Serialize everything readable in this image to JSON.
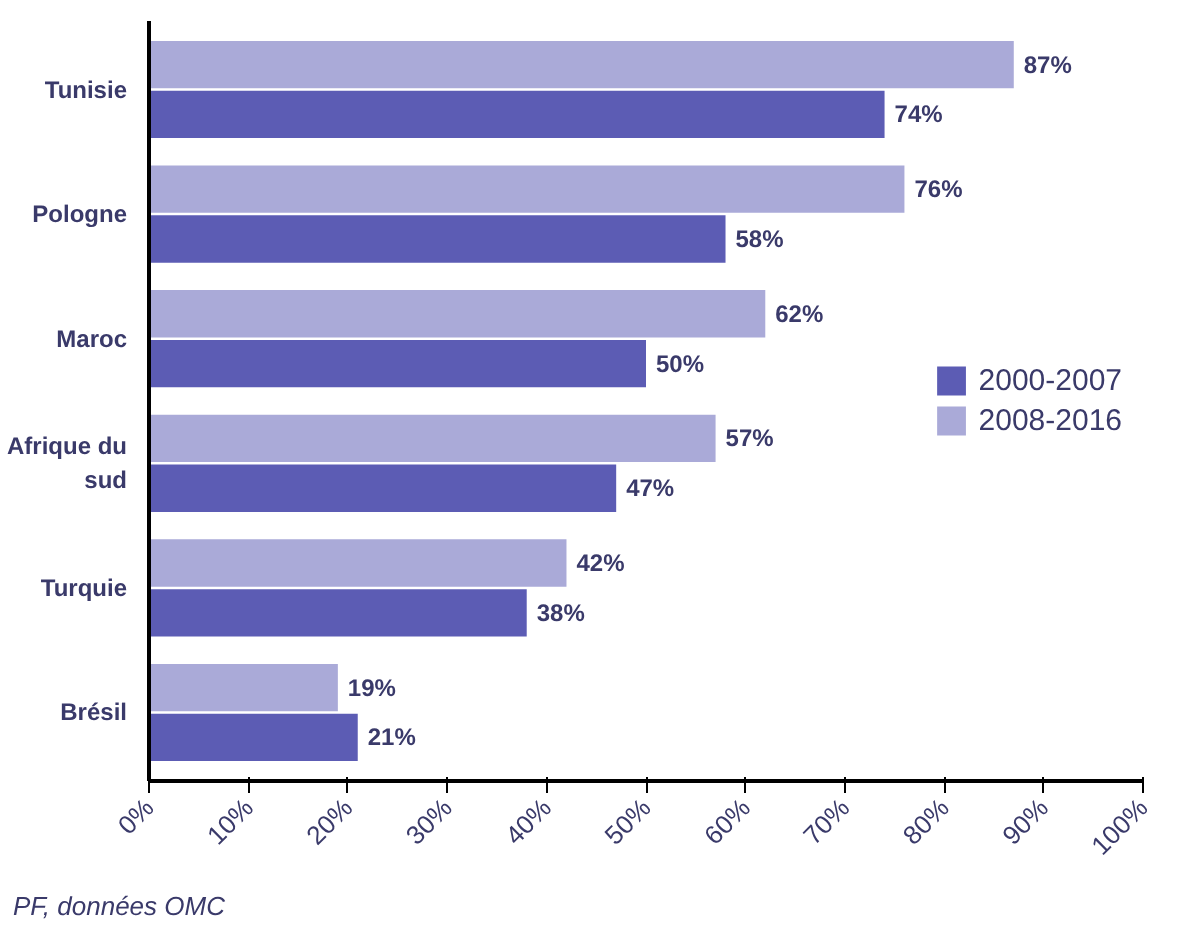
{
  "chart_data": {
    "type": "bar",
    "orientation": "horizontal",
    "categories": [
      "Tunisie",
      "Pologne",
      "Maroc",
      "Afrique du\nsud",
      "Turquie",
      "Brésil"
    ],
    "series": [
      {
        "name": "2000-2007",
        "color": "#5c5cb4",
        "values": [
          74,
          58,
          50,
          47,
          38,
          21
        ],
        "value_labels": [
          "74%",
          "58%",
          "50%",
          "47%",
          "38%",
          "21%"
        ]
      },
      {
        "name": "2008-2016",
        "color": "#aaaad8",
        "values": [
          87,
          76,
          62,
          57,
          42,
          19
        ],
        "value_labels": [
          "87%",
          "76%",
          "62%",
          "57%",
          "42%",
          "19%"
        ]
      }
    ],
    "xlim": [
      0,
      100
    ],
    "xticks": [
      {
        "value": 0,
        "label": "0%"
      },
      {
        "value": 10,
        "label": "10%"
      },
      {
        "value": 20,
        "label": "20%"
      },
      {
        "value": 30,
        "label": "30%"
      },
      {
        "value": 40,
        "label": "40%"
      },
      {
        "value": 50,
        "label": "50%"
      },
      {
        "value": 60,
        "label": "60%"
      },
      {
        "value": 70,
        "label": "70%"
      },
      {
        "value": 80,
        "label": "80%"
      },
      {
        "value": 90,
        "label": "90%"
      },
      {
        "value": 100,
        "label": "100%"
      }
    ],
    "grid": false,
    "legend": "right",
    "annotations": [
      "PF, données OMC"
    ]
  }
}
